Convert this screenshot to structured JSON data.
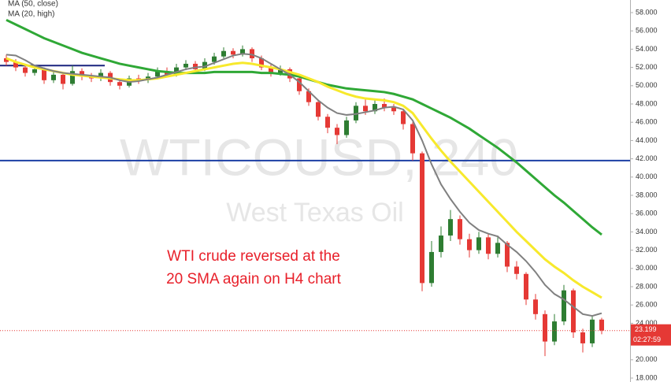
{
  "chart_data": {
    "type": "candlestick",
    "watermark_title": "WTICOUSD, 240",
    "watermark_subtitle": "West Texas Oil",
    "annotation": [
      "WTI crude reversed at the",
      "20 SMA again on H4 chart"
    ],
    "annotation_color": "#e8202a",
    "up_color": "#2e7d32",
    "down_color": "#e53935",
    "open": [
      53.0,
      52.6,
      52.0,
      51.4,
      51.8,
      50.6,
      51.2,
      50.2,
      51.6,
      51.0,
      50.8,
      51.4,
      50.4,
      50.0,
      50.8,
      50.6,
      51.0,
      51.6,
      51.2,
      52.0,
      52.4,
      51.8,
      52.6,
      53.2,
      53.8,
      53.4,
      54.0,
      53.0,
      52.0,
      51.4,
      51.8,
      50.8,
      49.4,
      48.2,
      46.6,
      45.4,
      44.6,
      46.2,
      47.8,
      47.2,
      48.0,
      47.6,
      47.2,
      45.8,
      42.6,
      28.4,
      31.8,
      33.6,
      35.4,
      33.2,
      32.0,
      33.4,
      31.6,
      32.8,
      30.2,
      29.4,
      26.6,
      25.0,
      22.0,
      24.2,
      27.6,
      23.0,
      21.8,
      24.4
    ],
    "high": [
      53.4,
      52.9,
      52.3,
      52.2,
      52.0,
      51.6,
      51.4,
      52.2,
      51.9,
      51.4,
      51.8,
      51.6,
      50.8,
      51.1,
      51.2,
      51.4,
      52.0,
      52.0,
      52.4,
      52.8,
      52.7,
      53.0,
      53.6,
      54.2,
      54.1,
      54.4,
      54.2,
      53.3,
      52.4,
      52.2,
      52.0,
      51.0,
      49.7,
      48.5,
      46.9,
      45.8,
      46.6,
      48.2,
      48.5,
      48.4,
      48.6,
      48.0,
      47.4,
      46.0,
      42.8,
      33.0,
      34.6,
      36.4,
      35.8,
      33.8,
      34.0,
      33.8,
      33.6,
      33.0,
      30.8,
      29.6,
      27.2,
      25.4,
      25.0,
      28.2,
      27.8,
      23.4,
      24.8,
      24.6
    ],
    "low": [
      52.2,
      51.6,
      51.0,
      51.1,
      50.2,
      50.3,
      49.6,
      50.0,
      50.6,
      50.4,
      50.5,
      50.0,
      49.6,
      49.8,
      50.2,
      50.3,
      50.8,
      50.9,
      51.0,
      51.7,
      51.4,
      51.6,
      52.3,
      53.0,
      53.0,
      53.2,
      52.6,
      51.7,
      51.0,
      51.1,
      50.4,
      49.0,
      47.8,
      46.2,
      44.8,
      43.6,
      44.3,
      45.9,
      46.8,
      46.9,
      47.2,
      46.8,
      45.2,
      41.8,
      27.5,
      28.0,
      31.2,
      33.0,
      32.6,
      31.2,
      31.6,
      31.0,
      31.2,
      29.6,
      28.8,
      26.0,
      24.4,
      20.4,
      21.6,
      23.8,
      22.4,
      20.8,
      21.4,
      22.8
    ],
    "close": [
      52.6,
      52.0,
      51.4,
      51.8,
      50.6,
      51.2,
      50.2,
      51.6,
      51.0,
      50.8,
      51.4,
      50.4,
      50.0,
      50.8,
      50.6,
      51.0,
      51.6,
      51.2,
      52.0,
      52.4,
      51.8,
      52.6,
      53.2,
      53.8,
      53.4,
      54.0,
      53.0,
      52.0,
      51.4,
      51.8,
      50.8,
      49.4,
      48.2,
      46.6,
      45.4,
      44.6,
      46.2,
      47.8,
      47.2,
      48.0,
      47.6,
      47.2,
      45.8,
      42.6,
      28.4,
      31.8,
      33.6,
      35.4,
      33.2,
      32.0,
      33.4,
      31.6,
      32.8,
      30.2,
      29.4,
      26.6,
      25.0,
      22.0,
      24.2,
      27.6,
      23.0,
      21.8,
      24.4,
      23.2
    ],
    "series": [
      {
        "name": "MA (50, close)",
        "color": "#2fa836",
        "values": [
          57.2,
          56.7,
          56.2,
          55.7,
          55.2,
          54.8,
          54.4,
          54.0,
          53.6,
          53.3,
          53.0,
          52.7,
          52.4,
          52.2,
          52.0,
          51.8,
          51.6,
          51.5,
          51.4,
          51.4,
          51.4,
          51.4,
          51.5,
          51.5,
          51.5,
          51.5,
          51.5,
          51.4,
          51.4,
          51.3,
          51.2,
          51.0,
          50.7,
          50.4,
          50.1,
          49.9,
          49.7,
          49.6,
          49.5,
          49.4,
          49.3,
          49.1,
          48.8,
          48.5,
          48.0,
          47.5,
          47.0,
          46.5,
          45.9,
          45.3,
          44.6,
          43.9,
          43.2,
          42.4,
          41.6,
          40.7,
          39.8,
          38.9,
          38.0,
          37.2,
          36.3,
          35.4,
          34.5,
          33.7
        ]
      },
      {
        "name": "MA (20, high)",
        "color": "#f7e92c",
        "values": [
          53.0,
          52.6,
          52.3,
          52.0,
          51.8,
          51.6,
          51.4,
          51.2,
          51.1,
          51.0,
          50.9,
          50.8,
          50.7,
          50.6,
          50.6,
          50.7,
          50.8,
          51.0,
          51.2,
          51.4,
          51.6,
          51.8,
          52.0,
          52.2,
          52.4,
          52.5,
          52.4,
          52.2,
          52.0,
          51.8,
          51.5,
          51.2,
          50.8,
          50.4,
          49.9,
          49.5,
          49.1,
          48.8,
          48.6,
          48.5,
          48.4,
          48.2,
          47.8,
          47.0,
          45.6,
          44.2,
          42.9,
          41.7,
          40.6,
          39.5,
          38.4,
          37.3,
          36.2,
          35.1,
          34.0,
          33.0,
          32.0,
          31.0,
          30.2,
          29.5,
          28.7,
          28.0,
          27.4,
          26.8
        ]
      },
      {
        "color": "#808080",
        "values": [
          53.4,
          53.3,
          52.8,
          52.2,
          51.9,
          51.6,
          51.4,
          51.3,
          51.2,
          51.1,
          51.0,
          50.9,
          50.6,
          50.4,
          50.5,
          50.7,
          50.9,
          51.2,
          51.5,
          51.8,
          52.0,
          52.1,
          52.5,
          52.9,
          53.3,
          53.5,
          53.4,
          53.0,
          52.4,
          51.8,
          51.2,
          50.4,
          49.4,
          48.4,
          47.6,
          47.0,
          46.8,
          46.9,
          47.1,
          47.3,
          47.6,
          47.7,
          47.4,
          46.2,
          44.0,
          41.4,
          39.2,
          37.6,
          36.2,
          35.0,
          34.2,
          33.8,
          33.5,
          32.6,
          31.8,
          30.8,
          29.6,
          28.2,
          27.2,
          26.6,
          25.8,
          25.0,
          24.8,
          25.1
        ]
      }
    ],
    "hlines": [
      {
        "value": 41.8,
        "color": "#1c3fa5"
      },
      {
        "value": 52.2,
        "color": "#1a237e"
      }
    ],
    "last_price": 23.199,
    "countdown": "02:27:59",
    "ylim": [
      17.57,
      59.38
    ],
    "yticks": [
      {
        "value": 18,
        "label": "18.000"
      },
      {
        "value": 20,
        "label": "20.000"
      },
      {
        "value": 22,
        "label": "22.000"
      },
      {
        "value": 24,
        "label": "24.000"
      },
      {
        "value": 26,
        "label": "26.000"
      },
      {
        "value": 28,
        "label": "28.000"
      },
      {
        "value": 30,
        "label": "30.000"
      },
      {
        "value": 32,
        "label": "32.000"
      },
      {
        "value": 34,
        "label": "34.000"
      },
      {
        "value": 36,
        "label": "36.000"
      },
      {
        "value": 38,
        "label": "38.000"
      },
      {
        "value": 40,
        "label": "40.000"
      },
      {
        "value": 42,
        "label": "42.000"
      },
      {
        "value": 44,
        "label": "44.000"
      },
      {
        "value": 46,
        "label": "46.000"
      },
      {
        "value": 48,
        "label": "48.000"
      },
      {
        "value": 50,
        "label": "50.000"
      },
      {
        "value": 52,
        "label": "52.000"
      },
      {
        "value": 54,
        "label": "54.000"
      },
      {
        "value": 56,
        "label": "56.000"
      },
      {
        "value": 58,
        "label": "58.000"
      }
    ]
  }
}
